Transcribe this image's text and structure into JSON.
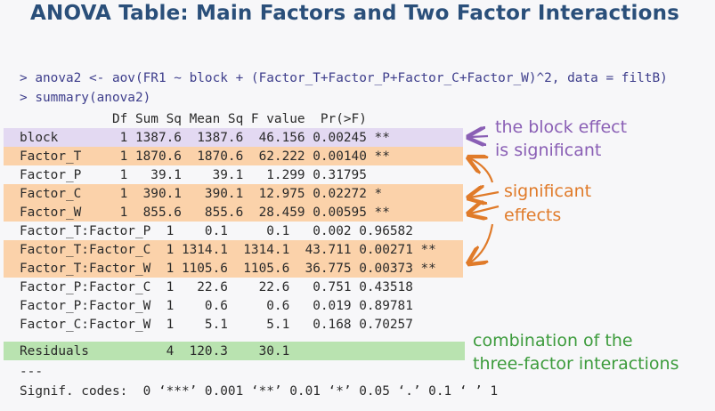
{
  "title": "ANOVA Table: Main Factors and Two Factor Interactions",
  "console": {
    "cmd1": "> anova2 <- aov(FR1 ~ block + (Factor_T+Factor_P+Factor_C+Factor_W)^2, data = filtB)",
    "cmd2": "> summary(anova2)"
  },
  "table": {
    "header": "            Df Sum Sq Mean Sq F value  Pr(>F)   ",
    "rows": [
      "block        1 1387.6  1387.6  46.156 0.00245 **",
      "Factor_T     1 1870.6  1870.6  62.222 0.00140 **",
      "Factor_P     1   39.1    39.1   1.299 0.31795   ",
      "Factor_C     1  390.1   390.1  12.975 0.02272 * ",
      "Factor_W     1  855.6   855.6  28.459 0.00595 **",
      "Factor_T:Factor_P  1    0.1     0.1   0.002 0.96582   ",
      "Factor_T:Factor_C  1 1314.1  1314.1  43.711 0.00271 **",
      "Factor_T:Factor_W  1 1105.6  1105.6  36.775 0.00373 **",
      "Factor_P:Factor_C  1   22.6    22.6   0.751 0.43518   ",
      "Factor_P:Factor_W  1    0.6     0.6   0.019 0.89781   ",
      "Factor_C:Factor_W  1    5.1     5.1   0.168 0.70257   ",
      "Residuals          4  120.3    30.1                   "
    ],
    "separator": "---",
    "signif": "Signif. codes:  0 ‘***’ 0.001 ‘**’ 0.01 ‘*’ 0.05 ‘.’ 0.1 ‘ ’ 1"
  },
  "annotations": {
    "block_line1": "the block effect",
    "block_line2": "is significant",
    "sig_line1": "significant",
    "sig_line2": "effects",
    "resid_line1": "combination of the",
    "resid_line2": "three-factor interactions"
  },
  "colors": {
    "title": "#2a4f7a",
    "highlight_block": "#e3d9f2",
    "highlight_significant": "#fbd2aa",
    "highlight_residuals": "#b9e3b0",
    "annotation_purple": "#8a5fb5",
    "annotation_orange": "#e07b2a",
    "annotation_green": "#3c9b3c"
  }
}
